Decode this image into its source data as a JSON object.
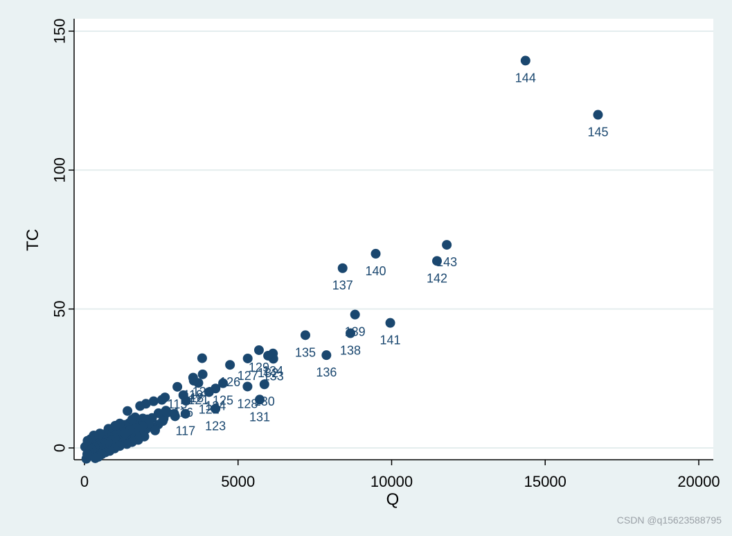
{
  "chart_data": {
    "type": "scatter",
    "xlabel": "Q",
    "ylabel": "TC",
    "xlim": [
      0,
      20000
    ],
    "ylim": [
      -5,
      150
    ],
    "xticks": [
      0,
      5000,
      10000,
      15000,
      20000
    ],
    "yticks": [
      0,
      50,
      100,
      150
    ],
    "grid": true,
    "marker_color": "#1a476f",
    "labeled_points": [
      {
        "label": "144",
        "x": 14359,
        "y": 139.4
      },
      {
        "label": "145",
        "x": 16719,
        "y": 119.9
      },
      {
        "label": "143",
        "x": 11796,
        "y": 73.1
      },
      {
        "label": "142",
        "x": 11477,
        "y": 67.3
      },
      {
        "label": "140",
        "x": 9482,
        "y": 69.9
      },
      {
        "label": "137",
        "x": 8404,
        "y": 64.7
      },
      {
        "label": "139",
        "x": 8809,
        "y": 48.0
      },
      {
        "label": "141",
        "x": 9956,
        "y": 45.0
      },
      {
        "label": "138",
        "x": 8659,
        "y": 41.3
      },
      {
        "label": "135",
        "x": 7192,
        "y": 40.6
      },
      {
        "label": "136",
        "x": 7877,
        "y": 33.4
      },
      {
        "label": "134",
        "x": 6137,
        "y": 34.0
      },
      {
        "label": "133",
        "x": 6149,
        "y": 32.1
      },
      {
        "label": "132",
        "x": 5977,
        "y": 33.2
      },
      {
        "label": "129",
        "x": 5681,
        "y": 35.2
      },
      {
        "label": "127",
        "x": 5315,
        "y": 32.2
      },
      {
        "label": "126",
        "x": 4738,
        "y": 29.9
      },
      {
        "label": "131",
        "x": 5705,
        "y": 17.4
      },
      {
        "label": "130",
        "x": 5858,
        "y": 22.9
      },
      {
        "label": "128",
        "x": 5308,
        "y": 22.1
      },
      {
        "label": "125",
        "x": 4510,
        "y": 23.3
      },
      {
        "label": "124",
        "x": 4268,
        "y": 21.4
      },
      {
        "label": "123",
        "x": 4265,
        "y": 14.1
      },
      {
        "label": "122",
        "x": 4054,
        "y": 20.1
      },
      {
        "label": "121",
        "x": 3708,
        "y": 23.4
      },
      {
        "label": "120",
        "x": 3847,
        "y": 26.5
      },
      {
        "label": "119",
        "x": 3537,
        "y": 25.3
      },
      {
        "label": "118",
        "x": 3558,
        "y": 24.2
      },
      {
        "label": "117",
        "x": 3288,
        "y": 12.3
      },
      {
        "label": "116",
        "x": 3217,
        "y": 19.0
      },
      {
        "label": "115",
        "x": 3024,
        "y": 22.0
      }
    ],
    "unlabeled_points": [
      [
        3831,
        32.3
      ],
      [
        3306,
        17.0
      ],
      [
        2920,
        12.3
      ],
      [
        2620,
        18.2
      ],
      [
        2520,
        17.3
      ],
      [
        2250,
        16.8
      ],
      [
        2000,
        15.9
      ],
      [
        1810,
        15.1
      ],
      [
        1400,
        13.3
      ],
      [
        2580,
        10.6
      ],
      [
        2410,
        12.5
      ],
      [
        2200,
        10.8
      ],
      [
        2050,
        10.3
      ],
      [
        1900,
        10.6
      ],
      [
        1720,
        9.1
      ],
      [
        1600,
        9.6
      ],
      [
        1450,
        8.9
      ],
      [
        1300,
        8.3
      ],
      [
        1200,
        7.6
      ],
      [
        1100,
        6.9
      ],
      [
        950,
        6.6
      ],
      [
        850,
        5.9
      ],
      [
        780,
        6.9
      ],
      [
        700,
        4.9
      ],
      [
        600,
        4.9
      ],
      [
        520,
        4.3
      ],
      [
        450,
        3.8
      ],
      [
        380,
        4.4
      ],
      [
        300,
        3.3
      ],
      [
        240,
        2.8
      ],
      [
        180,
        2.1
      ],
      [
        120,
        1.4
      ],
      [
        60,
        0.8
      ],
      [
        20,
        0.4
      ],
      [
        2400,
        8.4
      ],
      [
        2200,
        7.5
      ],
      [
        2000,
        6.7
      ],
      [
        1800,
        6.1
      ],
      [
        1650,
        5.0
      ],
      [
        1500,
        4.6
      ],
      [
        1350,
        3.9
      ],
      [
        1200,
        3.0
      ],
      [
        1050,
        2.5
      ],
      [
        900,
        1.8
      ],
      [
        750,
        1.3
      ],
      [
        620,
        0.6
      ],
      [
        500,
        0.1
      ],
      [
        400,
        -0.6
      ],
      [
        320,
        -1.2
      ],
      [
        250,
        -2.1
      ],
      [
        180,
        -2.7
      ],
      [
        110,
        -3.1
      ],
      [
        60,
        -3.9
      ],
      [
        2700,
        12.7
      ],
      [
        2550,
        9.7
      ],
      [
        2300,
        6.3
      ],
      [
        1950,
        4.1
      ],
      [
        1750,
        2.9
      ],
      [
        1550,
        2.1
      ],
      [
        1380,
        1.4
      ],
      [
        1150,
        0.7
      ],
      [
        980,
        -0.2
      ],
      [
        820,
        -1.1
      ],
      [
        680,
        -1.6
      ],
      [
        560,
        -2.3
      ],
      [
        450,
        -3.2
      ],
      [
        350,
        -3.7
      ],
      [
        1250,
        5.7
      ],
      [
        1100,
        4.9
      ],
      [
        980,
        3.6
      ],
      [
        870,
        2.7
      ],
      [
        760,
        2.1
      ],
      [
        640,
        1.6
      ],
      [
        530,
        1.1
      ],
      [
        430,
        0.5
      ],
      [
        330,
        0.2
      ],
      [
        230,
        -0.5
      ],
      [
        150,
        -1.4
      ],
      [
        90,
        -2.2
      ],
      [
        2100,
        8.9
      ],
      [
        1880,
        7.9
      ],
      [
        1680,
        7.1
      ],
      [
        1480,
        6.5
      ],
      [
        1320,
        5.3
      ],
      [
        2950,
        11.4
      ],
      [
        2650,
        13.4
      ],
      [
        1650,
        11.0
      ],
      [
        1550,
        10.2
      ],
      [
        1150,
        8.8
      ],
      [
        1000,
        8.0
      ],
      [
        500,
        5.2
      ],
      [
        300,
        4.5
      ],
      [
        200,
        3.2
      ],
      [
        100,
        2.6
      ]
    ]
  },
  "watermark": "CSDN @q15623588795"
}
